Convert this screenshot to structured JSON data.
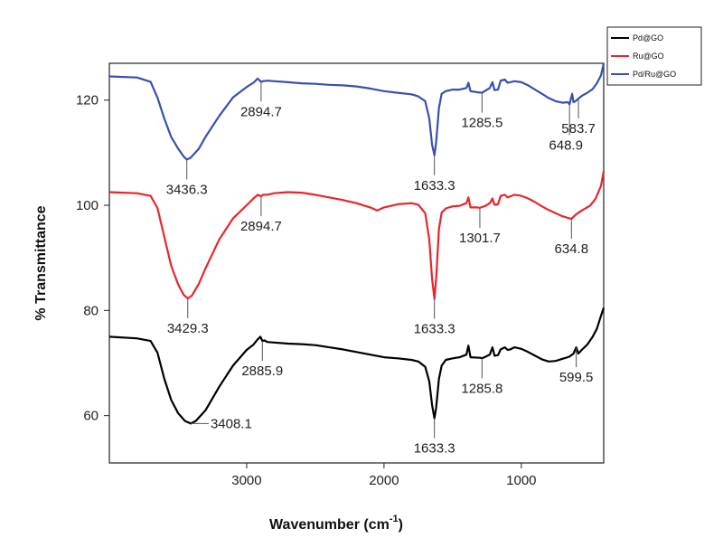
{
  "chart_data": {
    "type": "line",
    "xlabel": "Wavenumber (cm",
    "xlabel_sup": "-1",
    "xlabel_close": ")",
    "ylabel": "% Transmittance",
    "xlim": [
      4000,
      400
    ],
    "ylim": [
      51,
      127
    ],
    "xticks": [
      3000,
      2000,
      1000
    ],
    "yticks": [
      60,
      80,
      100,
      120
    ],
    "legend_position": "top-right",
    "grid": false,
    "series": [
      {
        "name": "Pd@GO",
        "color": "#000000",
        "points": [
          [
            4000,
            75
          ],
          [
            3800,
            74.7
          ],
          [
            3700,
            74.2
          ],
          [
            3650,
            72
          ],
          [
            3600,
            67
          ],
          [
            3550,
            63
          ],
          [
            3500,
            60.5
          ],
          [
            3450,
            59
          ],
          [
            3408,
            58.5
          ],
          [
            3370,
            59
          ],
          [
            3300,
            61
          ],
          [
            3200,
            65.5
          ],
          [
            3100,
            69.5
          ],
          [
            3000,
            72.5
          ],
          [
            2950,
            73.5
          ],
          [
            2920,
            74.5
          ],
          [
            2900,
            75
          ],
          [
            2886,
            74.2
          ],
          [
            2870,
            74.3
          ],
          [
            2850,
            74
          ],
          [
            2800,
            73.9
          ],
          [
            2700,
            73.7
          ],
          [
            2600,
            73.6
          ],
          [
            2500,
            73.4
          ],
          [
            2400,
            73
          ],
          [
            2300,
            72.6
          ],
          [
            2200,
            72.1
          ],
          [
            2100,
            71.6
          ],
          [
            2000,
            71.1
          ],
          [
            1900,
            70.9
          ],
          [
            1800,
            70.6
          ],
          [
            1750,
            70.3
          ],
          [
            1700,
            69.3
          ],
          [
            1670,
            66.5
          ],
          [
            1650,
            62
          ],
          [
            1633,
            59.5
          ],
          [
            1620,
            61.5
          ],
          [
            1600,
            67
          ],
          [
            1580,
            69.5
          ],
          [
            1550,
            70.6
          ],
          [
            1500,
            70.9
          ],
          [
            1450,
            71.1
          ],
          [
            1400,
            71.6
          ],
          [
            1385,
            73.3
          ],
          [
            1370,
            71.1
          ],
          [
            1300,
            71
          ],
          [
            1286,
            70.9
          ],
          [
            1260,
            71.2
          ],
          [
            1230,
            71.6
          ],
          [
            1210,
            73
          ],
          [
            1195,
            71.4
          ],
          [
            1170,
            71.5
          ],
          [
            1150,
            72.6
          ],
          [
            1120,
            73
          ],
          [
            1100,
            72.5
          ],
          [
            1080,
            72.6
          ],
          [
            1050,
            73
          ],
          [
            1000,
            72.7
          ],
          [
            950,
            72.1
          ],
          [
            900,
            71.4
          ],
          [
            850,
            70.7
          ],
          [
            800,
            70.3
          ],
          [
            750,
            70.4
          ],
          [
            700,
            70.8
          ],
          [
            650,
            71.2
          ],
          [
            620,
            71.8
          ],
          [
            600,
            73
          ],
          [
            585,
            71.8
          ],
          [
            560,
            72.5
          ],
          [
            520,
            73.5
          ],
          [
            480,
            75
          ],
          [
            450,
            76.5
          ],
          [
            420,
            79
          ],
          [
            400,
            80.5
          ]
        ],
        "annotations": [
          {
            "x": 3408,
            "y": 58.5,
            "label": "3408.1",
            "leader": "right"
          },
          {
            "x": 2886,
            "y": 74.2,
            "label": "2885.9",
            "leader": "down"
          },
          {
            "x": 1633,
            "y": 59.5,
            "label": "1633.3",
            "leader": "down"
          },
          {
            "x": 1286,
            "y": 70.9,
            "label": "1285.8",
            "leader": "down"
          },
          {
            "x": 600,
            "y": 73,
            "label": "599.5",
            "leader": "down"
          }
        ]
      },
      {
        "name": "Ru@GO",
        "color": "#e8262a",
        "points": [
          [
            4000,
            102.5
          ],
          [
            3800,
            102.3
          ],
          [
            3700,
            101.8
          ],
          [
            3650,
            99.5
          ],
          [
            3600,
            94
          ],
          [
            3550,
            88.5
          ],
          [
            3500,
            85
          ],
          [
            3460,
            83
          ],
          [
            3429,
            82.3
          ],
          [
            3400,
            82.8
          ],
          [
            3350,
            85
          ],
          [
            3300,
            88
          ],
          [
            3200,
            93.5
          ],
          [
            3100,
            97.5
          ],
          [
            3000,
            100
          ],
          [
            2950,
            101.3
          ],
          [
            2920,
            102
          ],
          [
            2895,
            101.7
          ],
          [
            2880,
            102
          ],
          [
            2850,
            102
          ],
          [
            2800,
            102.3
          ],
          [
            2700,
            102.5
          ],
          [
            2600,
            102.4
          ],
          [
            2500,
            102
          ],
          [
            2400,
            101.5
          ],
          [
            2300,
            101
          ],
          [
            2200,
            100.4
          ],
          [
            2100,
            99.6
          ],
          [
            2050,
            99
          ],
          [
            2000,
            99.6
          ],
          [
            1900,
            100.2
          ],
          [
            1800,
            100.4
          ],
          [
            1750,
            100.1
          ],
          [
            1700,
            98.5
          ],
          [
            1670,
            93.5
          ],
          [
            1650,
            86
          ],
          [
            1633,
            82.2
          ],
          [
            1620,
            86
          ],
          [
            1600,
            95.5
          ],
          [
            1580,
            98.6
          ],
          [
            1550,
            99.4
          ],
          [
            1500,
            99.8
          ],
          [
            1450,
            99.9
          ],
          [
            1400,
            100.4
          ],
          [
            1385,
            101.5
          ],
          [
            1370,
            99.6
          ],
          [
            1320,
            99.6
          ],
          [
            1302,
            99.5
          ],
          [
            1260,
            99.9
          ],
          [
            1230,
            100.4
          ],
          [
            1210,
            101.3
          ],
          [
            1195,
            100.1
          ],
          [
            1170,
            100.2
          ],
          [
            1150,
            101.8
          ],
          [
            1120,
            102
          ],
          [
            1100,
            101.5
          ],
          [
            1080,
            101.7
          ],
          [
            1050,
            102
          ],
          [
            1000,
            101.8
          ],
          [
            950,
            101.3
          ],
          [
            900,
            100.6
          ],
          [
            850,
            99.8
          ],
          [
            800,
            99.1
          ],
          [
            750,
            98.5
          ],
          [
            700,
            97.9
          ],
          [
            660,
            97.6
          ],
          [
            635,
            97.4
          ],
          [
            620,
            97.8
          ],
          [
            600,
            98.3
          ],
          [
            560,
            99
          ],
          [
            500,
            99.9
          ],
          [
            460,
            101.2
          ],
          [
            420,
            103.7
          ],
          [
            400,
            106.5
          ]
        ],
        "annotations": [
          {
            "x": 3429,
            "y": 82.3,
            "label": "3429.3",
            "leader": "down"
          },
          {
            "x": 2895,
            "y": 101.7,
            "label": "2894.7",
            "leader": "down"
          },
          {
            "x": 1633,
            "y": 82.2,
            "label": "1633.3",
            "leader": "down"
          },
          {
            "x": 1302,
            "y": 99.5,
            "label": "1301.7",
            "leader": "down"
          },
          {
            "x": 635,
            "y": 97.4,
            "label": "634.8",
            "leader": "down"
          }
        ]
      },
      {
        "name": "Pd/Ru@GO",
        "color": "#3a4fae",
        "points": [
          [
            4000,
            124.5
          ],
          [
            3800,
            124.3
          ],
          [
            3700,
            123.5
          ],
          [
            3650,
            120.5
          ],
          [
            3600,
            116.5
          ],
          [
            3550,
            113
          ],
          [
            3500,
            110.8
          ],
          [
            3460,
            109.3
          ],
          [
            3436,
            108.7
          ],
          [
            3410,
            109
          ],
          [
            3350,
            110.7
          ],
          [
            3300,
            113
          ],
          [
            3200,
            117
          ],
          [
            3100,
            120.5
          ],
          [
            3000,
            122.5
          ],
          [
            2950,
            123.3
          ],
          [
            2920,
            124.1
          ],
          [
            2895,
            123.5
          ],
          [
            2880,
            123.6
          ],
          [
            2850,
            123.7
          ],
          [
            2800,
            123.6
          ],
          [
            2700,
            123.4
          ],
          [
            2600,
            123.2
          ],
          [
            2500,
            123.1
          ],
          [
            2400,
            122.9
          ],
          [
            2300,
            122.8
          ],
          [
            2200,
            122.6
          ],
          [
            2100,
            122.2
          ],
          [
            2000,
            121.7
          ],
          [
            1900,
            121.4
          ],
          [
            1800,
            121.1
          ],
          [
            1750,
            120.7
          ],
          [
            1700,
            119.8
          ],
          [
            1670,
            116.5
          ],
          [
            1650,
            111.5
          ],
          [
            1633,
            109.5
          ],
          [
            1620,
            112
          ],
          [
            1600,
            118.5
          ],
          [
            1580,
            121.2
          ],
          [
            1550,
            121.7
          ],
          [
            1500,
            122
          ],
          [
            1450,
            122
          ],
          [
            1400,
            122.3
          ],
          [
            1385,
            123.3
          ],
          [
            1370,
            121.7
          ],
          [
            1320,
            121.5
          ],
          [
            1286,
            121.4
          ],
          [
            1260,
            121.8
          ],
          [
            1230,
            122.3
          ],
          [
            1210,
            123.4
          ],
          [
            1195,
            121.9
          ],
          [
            1170,
            122
          ],
          [
            1150,
            123.7
          ],
          [
            1120,
            123.9
          ],
          [
            1100,
            123.3
          ],
          [
            1080,
            123.4
          ],
          [
            1050,
            123.6
          ],
          [
            1000,
            123.4
          ],
          [
            950,
            122.8
          ],
          [
            900,
            122
          ],
          [
            850,
            121.2
          ],
          [
            800,
            120.4
          ],
          [
            750,
            119.8
          ],
          [
            700,
            119.5
          ],
          [
            660,
            119.6
          ],
          [
            649,
            119.2
          ],
          [
            640,
            120.1
          ],
          [
            630,
            121.2
          ],
          [
            620,
            119.6
          ],
          [
            600,
            119.9
          ],
          [
            584,
            120.3
          ],
          [
            560,
            120.8
          ],
          [
            520,
            121.4
          ],
          [
            480,
            122.1
          ],
          [
            450,
            123.2
          ],
          [
            420,
            124.7
          ],
          [
            400,
            127
          ]
        ],
        "annotations": [
          {
            "x": 3436,
            "y": 108.7,
            "label": "3436.3",
            "leader": "down"
          },
          {
            "x": 2895,
            "y": 123.5,
            "label": "2894.7",
            "leader": "down"
          },
          {
            "x": 1633,
            "y": 109.5,
            "label": "1633.3",
            "leader": "down"
          },
          {
            "x": 1286,
            "y": 121.4,
            "label": "1285.5",
            "leader": "down"
          },
          {
            "x": 649,
            "y": 119.2,
            "label": "648.9",
            "leader": "down-long"
          },
          {
            "x": 584,
            "y": 120.3,
            "label": "583.7",
            "leader": "down"
          }
        ]
      }
    ]
  }
}
